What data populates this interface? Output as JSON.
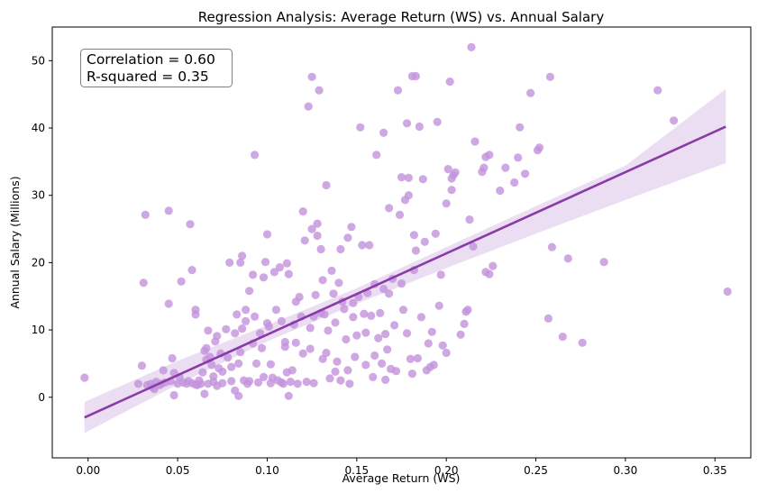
{
  "chart_data": {
    "type": "scatter",
    "title": "Regression Analysis: Average Return (WS) vs. Annual Salary",
    "xlabel": "Average Return (WS)",
    "ylabel": "Annual Salary (Millions)",
    "xlim": [
      -0.02,
      0.37
    ],
    "ylim": [
      -9,
      55
    ],
    "xticks": [
      0.0,
      0.05,
      0.1,
      0.15,
      0.2,
      0.25,
      0.3,
      0.35
    ],
    "xtick_labels": [
      "0.00",
      "0.05",
      "0.10",
      "0.15",
      "0.20",
      "0.25",
      "0.30",
      "0.35"
    ],
    "yticks": [
      0,
      10,
      20,
      30,
      40,
      50
    ],
    "ytick_labels": [
      "0",
      "10",
      "20",
      "30",
      "40",
      "50"
    ],
    "grid": false,
    "point_color": "#c392dc",
    "line_color": "#8a3aa6",
    "band_color": "#e6d6ef",
    "annotation": [
      "Correlation = 0.60",
      "R-squared = 0.35"
    ],
    "regression": {
      "x0": -0.002,
      "y0": -3.0,
      "x1": 0.356,
      "y1": 40.2
    },
    "confidence_band": {
      "x": [
        -0.002,
        0.05,
        0.1,
        0.15,
        0.2,
        0.25,
        0.3,
        0.356
      ],
      "lower": [
        -5.3,
        1.9,
        8.3,
        13.9,
        19.2,
        24.3,
        29.3,
        34.8
      ],
      "upper": [
        -0.7,
        5.4,
        10.7,
        16.2,
        22.3,
        28.4,
        34.4,
        45.8
      ]
    },
    "points": [
      [
        -0.002,
        2.9
      ],
      [
        0.028,
        2.0
      ],
      [
        0.03,
        4.7
      ],
      [
        0.031,
        17.0
      ],
      [
        0.032,
        27.1
      ],
      [
        0.033,
        1.8
      ],
      [
        0.035,
        2.0
      ],
      [
        0.036,
        1.5
      ],
      [
        0.037,
        1.2
      ],
      [
        0.038,
        2.3
      ],
      [
        0.04,
        1.8
      ],
      [
        0.041,
        2.0
      ],
      [
        0.042,
        4.0
      ],
      [
        0.043,
        2.2
      ],
      [
        0.045,
        27.7
      ],
      [
        0.045,
        13.9
      ],
      [
        0.046,
        2.4
      ],
      [
        0.047,
        5.8
      ],
      [
        0.048,
        3.6
      ],
      [
        0.048,
        0.3
      ],
      [
        0.05,
        2.0
      ],
      [
        0.051,
        3.0
      ],
      [
        0.052,
        17.2
      ],
      [
        0.053,
        2.2
      ],
      [
        0.055,
        2.0
      ],
      [
        0.056,
        2.4
      ],
      [
        0.057,
        25.7
      ],
      [
        0.058,
        2.1
      ],
      [
        0.058,
        18.9
      ],
      [
        0.06,
        13.0
      ],
      [
        0.06,
        12.3
      ],
      [
        0.06,
        1.9
      ],
      [
        0.061,
        1.8
      ],
      [
        0.062,
        2.5
      ],
      [
        0.063,
        2.0
      ],
      [
        0.064,
        3.7
      ],
      [
        0.065,
        0.5
      ],
      [
        0.065,
        6.9
      ],
      [
        0.066,
        7.3
      ],
      [
        0.066,
        5.6
      ],
      [
        0.067,
        9.9
      ],
      [
        0.067,
        2.0
      ],
      [
        0.068,
        6.0
      ],
      [
        0.069,
        4.8
      ],
      [
        0.07,
        2.3
      ],
      [
        0.07,
        3.1
      ],
      [
        0.071,
        8.3
      ],
      [
        0.072,
        1.7
      ],
      [
        0.072,
        9.1
      ],
      [
        0.073,
        4.3
      ],
      [
        0.074,
        6.5
      ],
      [
        0.075,
        2.1
      ],
      [
        0.075,
        3.8
      ],
      [
        0.077,
        10.1
      ],
      [
        0.078,
        5.9
      ],
      [
        0.079,
        20.0
      ],
      [
        0.08,
        2.4
      ],
      [
        0.08,
        4.5
      ],
      [
        0.082,
        9.5
      ],
      [
        0.082,
        1.0
      ],
      [
        0.083,
        12.3
      ],
      [
        0.084,
        5.0
      ],
      [
        0.084,
        0.2
      ],
      [
        0.085,
        20.0
      ],
      [
        0.085,
        6.7
      ],
      [
        0.086,
        10.2
      ],
      [
        0.086,
        21.0
      ],
      [
        0.087,
        2.5
      ],
      [
        0.088,
        13.0
      ],
      [
        0.088,
        11.3
      ],
      [
        0.089,
        2.0
      ],
      [
        0.09,
        15.8
      ],
      [
        0.09,
        2.4
      ],
      [
        0.092,
        8.0
      ],
      [
        0.092,
        18.2
      ],
      [
        0.093,
        36.0
      ],
      [
        0.093,
        12.0
      ],
      [
        0.094,
        5.0
      ],
      [
        0.095,
        2.2
      ],
      [
        0.096,
        9.5
      ],
      [
        0.097,
        7.3
      ],
      [
        0.098,
        17.8
      ],
      [
        0.098,
        3.0
      ],
      [
        0.099,
        20.1
      ],
      [
        0.1,
        11.0
      ],
      [
        0.1,
        24.2
      ],
      [
        0.101,
        10.5
      ],
      [
        0.102,
        2.1
      ],
      [
        0.102,
        4.9
      ],
      [
        0.103,
        2.9
      ],
      [
        0.104,
        18.6
      ],
      [
        0.105,
        13.0
      ],
      [
        0.106,
        2.5
      ],
      [
        0.107,
        19.3
      ],
      [
        0.108,
        11.3
      ],
      [
        0.108,
        2.2
      ],
      [
        0.109,
        2.0
      ],
      [
        0.11,
        8.2
      ],
      [
        0.11,
        7.5
      ],
      [
        0.111,
        19.9
      ],
      [
        0.111,
        3.7
      ],
      [
        0.112,
        0.2
      ],
      [
        0.112,
        18.3
      ],
      [
        0.113,
        2.3
      ],
      [
        0.114,
        4.0
      ],
      [
        0.115,
        10.8
      ],
      [
        0.116,
        14.2
      ],
      [
        0.116,
        8.1
      ],
      [
        0.117,
        2.0
      ],
      [
        0.118,
        14.9
      ],
      [
        0.119,
        12.0
      ],
      [
        0.12,
        6.5
      ],
      [
        0.12,
        27.6
      ],
      [
        0.121,
        23.3
      ],
      [
        0.122,
        2.3
      ],
      [
        0.123,
        43.2
      ],
      [
        0.124,
        10.3
      ],
      [
        0.124,
        7.2
      ],
      [
        0.125,
        25.0
      ],
      [
        0.125,
        47.6
      ],
      [
        0.126,
        12.0
      ],
      [
        0.126,
        2.1
      ],
      [
        0.127,
        15.2
      ],
      [
        0.128,
        25.8
      ],
      [
        0.128,
        24.0
      ],
      [
        0.129,
        45.6
      ],
      [
        0.13,
        22.0
      ],
      [
        0.13,
        12.5
      ],
      [
        0.131,
        17.4
      ],
      [
        0.131,
        5.7
      ],
      [
        0.132,
        12.3
      ],
      [
        0.133,
        31.5
      ],
      [
        0.133,
        6.6
      ],
      [
        0.134,
        9.9
      ],
      [
        0.135,
        2.8
      ],
      [
        0.136,
        18.8
      ],
      [
        0.137,
        15.4
      ],
      [
        0.138,
        11.1
      ],
      [
        0.138,
        3.8
      ],
      [
        0.139,
        5.3
      ],
      [
        0.14,
        17.0
      ],
      [
        0.141,
        22.0
      ],
      [
        0.141,
        2.5
      ],
      [
        0.142,
        14.2
      ],
      [
        0.143,
        13.1
      ],
      [
        0.144,
        8.6
      ],
      [
        0.145,
        23.7
      ],
      [
        0.145,
        4.0
      ],
      [
        0.146,
        2.0
      ],
      [
        0.147,
        25.3
      ],
      [
        0.148,
        14.0
      ],
      [
        0.148,
        11.9
      ],
      [
        0.149,
        6.0
      ],
      [
        0.15,
        9.2
      ],
      [
        0.151,
        14.9
      ],
      [
        0.152,
        40.1
      ],
      [
        0.153,
        22.6
      ],
      [
        0.154,
        12.4
      ],
      [
        0.155,
        4.8
      ],
      [
        0.155,
        9.6
      ],
      [
        0.156,
        15.5
      ],
      [
        0.157,
        22.6
      ],
      [
        0.158,
        12.1
      ],
      [
        0.159,
        3.0
      ],
      [
        0.16,
        16.8
      ],
      [
        0.16,
        6.2
      ],
      [
        0.161,
        36.0
      ],
      [
        0.162,
        8.8
      ],
      [
        0.163,
        12.5
      ],
      [
        0.164,
        5.0
      ],
      [
        0.165,
        16.1
      ],
      [
        0.165,
        39.3
      ],
      [
        0.166,
        2.6
      ],
      [
        0.166,
        9.4
      ],
      [
        0.167,
        7.1
      ],
      [
        0.168,
        28.1
      ],
      [
        0.168,
        15.4
      ],
      [
        0.169,
        4.2
      ],
      [
        0.17,
        17.6
      ],
      [
        0.171,
        10.7
      ],
      [
        0.172,
        3.9
      ],
      [
        0.173,
        45.6
      ],
      [
        0.174,
        27.1
      ],
      [
        0.175,
        32.7
      ],
      [
        0.175,
        16.9
      ],
      [
        0.176,
        13.0
      ],
      [
        0.177,
        29.3
      ],
      [
        0.178,
        40.7
      ],
      [
        0.178,
        9.5
      ],
      [
        0.179,
        30.0
      ],
      [
        0.179,
        32.6
      ],
      [
        0.18,
        5.7
      ],
      [
        0.181,
        3.5
      ],
      [
        0.181,
        47.7
      ],
      [
        0.182,
        24.1
      ],
      [
        0.182,
        18.9
      ],
      [
        0.183,
        47.7
      ],
      [
        0.183,
        21.8
      ],
      [
        0.184,
        5.8
      ],
      [
        0.185,
        40.2
      ],
      [
        0.186,
        11.9
      ],
      [
        0.187,
        32.4
      ],
      [
        0.188,
        23.1
      ],
      [
        0.189,
        4.0
      ],
      [
        0.19,
        8.0
      ],
      [
        0.191,
        4.5
      ],
      [
        0.192,
        9.7
      ],
      [
        0.193,
        4.8
      ],
      [
        0.194,
        24.3
      ],
      [
        0.195,
        40.9
      ],
      [
        0.196,
        13.6
      ],
      [
        0.197,
        18.2
      ],
      [
        0.198,
        7.7
      ],
      [
        0.2,
        28.8
      ],
      [
        0.2,
        6.6
      ],
      [
        0.201,
        33.9
      ],
      [
        0.202,
        46.9
      ],
      [
        0.203,
        30.8
      ],
      [
        0.203,
        32.5
      ],
      [
        0.204,
        33.0
      ],
      [
        0.205,
        33.4
      ],
      [
        0.208,
        9.3
      ],
      [
        0.21,
        10.9
      ],
      [
        0.211,
        12.7
      ],
      [
        0.212,
        13.0
      ],
      [
        0.213,
        26.4
      ],
      [
        0.214,
        52.0
      ],
      [
        0.215,
        22.4
      ],
      [
        0.216,
        38.0
      ],
      [
        0.22,
        33.5
      ],
      [
        0.221,
        34.1
      ],
      [
        0.222,
        35.7
      ],
      [
        0.222,
        18.6
      ],
      [
        0.224,
        36.0
      ],
      [
        0.224,
        18.3
      ],
      [
        0.226,
        19.5
      ],
      [
        0.23,
        30.7
      ],
      [
        0.233,
        34.1
      ],
      [
        0.238,
        31.9
      ],
      [
        0.24,
        35.6
      ],
      [
        0.241,
        40.1
      ],
      [
        0.244,
        33.2
      ],
      [
        0.247,
        45.2
      ],
      [
        0.251,
        36.7
      ],
      [
        0.252,
        37.1
      ],
      [
        0.257,
        11.7
      ],
      [
        0.258,
        47.6
      ],
      [
        0.259,
        22.3
      ],
      [
        0.265,
        9.0
      ],
      [
        0.268,
        20.6
      ],
      [
        0.276,
        8.1
      ],
      [
        0.288,
        20.1
      ],
      [
        0.318,
        45.6
      ],
      [
        0.327,
        41.1
      ],
      [
        0.357,
        15.7
      ]
    ]
  }
}
